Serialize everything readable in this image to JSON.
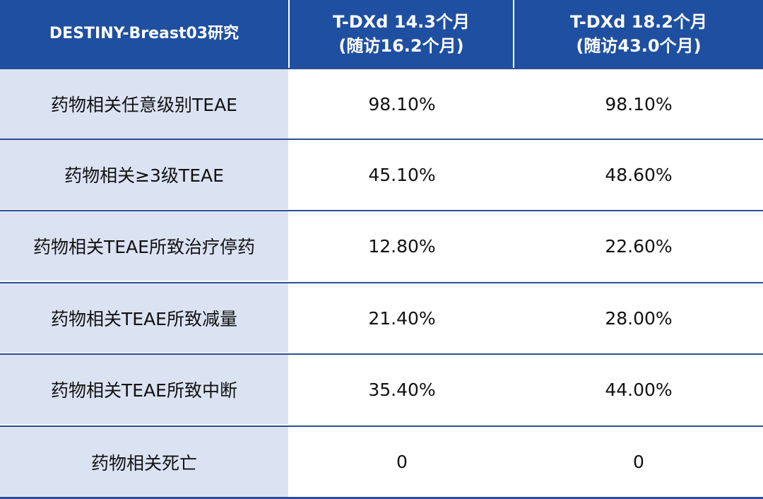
{
  "table": {
    "header": {
      "study": "DESTINY-Breast03研究",
      "col1_line1": "T-DXd 14.3个月",
      "col1_line2": "(随访16.2个月)",
      "col2_line1": "T-DXd 18.2个月",
      "col2_line2": "(随访43.0个月)"
    },
    "rows": [
      {
        "label": "药物相关任意级别TEAE",
        "v1": "98.10%",
        "v2": "98.10%"
      },
      {
        "label": "药物相关≥3级TEAE",
        "v1": "45.10%",
        "v2": "48.60%"
      },
      {
        "label": "药物相关TEAE所致治疗停药",
        "v1": "12.80%",
        "v2": "22.60%"
      },
      {
        "label": "药物相关TEAE所致减量",
        "v1": "21.40%",
        "v2": "28.00%"
      },
      {
        "label": "药物相关TEAE所致中断",
        "v1": "35.40%",
        "v2": "44.00%"
      },
      {
        "label": "药物相关死亡",
        "v1": "0",
        "v2": "0"
      }
    ]
  },
  "colors": {
    "header_bg": "#1f4fa0",
    "label_bg": "#dbe3f3",
    "rule": "#2c4f93"
  }
}
